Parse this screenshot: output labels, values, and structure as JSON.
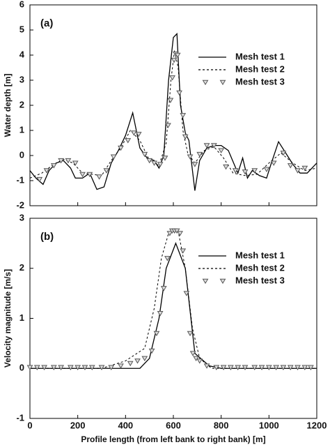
{
  "chart_data": [
    {
      "type": "line",
      "annotation": "(a)",
      "ylabel": "Water depth [m]",
      "xlim": [
        0,
        1200
      ],
      "xticks": [
        0,
        200,
        400,
        600,
        800,
        1000,
        1200
      ],
      "ylim": [
        -2,
        6
      ],
      "yticks": [
        -2,
        -1,
        0,
        1,
        2,
        3,
        4,
        5,
        6
      ],
      "series": [
        {
          "name": "Mesh test 1",
          "style": "solid",
          "color": "#000000",
          "x": [
            0,
            25,
            55,
            80,
            110,
            140,
            170,
            190,
            220,
            250,
            280,
            310,
            340,
            370,
            400,
            430,
            460,
            490,
            520,
            540,
            560,
            580,
            600,
            615,
            630,
            650,
            665,
            690,
            710,
            740,
            770,
            800,
            830,
            870,
            890,
            910,
            930,
            960,
            990,
            1010,
            1040,
            1070,
            1100,
            1130,
            1160,
            1200
          ],
          "values": [
            -0.6,
            -0.9,
            -1.15,
            -0.6,
            -0.3,
            -0.2,
            -0.5,
            -0.9,
            -0.9,
            -0.7,
            -1.35,
            -1.25,
            -0.3,
            0.2,
            0.8,
            1.7,
            0.3,
            -0.1,
            -0.2,
            -0.5,
            0,
            3,
            4.7,
            4.85,
            2,
            0.9,
            0.6,
            -1.4,
            -0.2,
            0.3,
            0.4,
            0.4,
            0.2,
            -0.7,
            -0.1,
            -0.9,
            -0.6,
            -0.8,
            -0.9,
            -0.3,
            0.55,
            0.1,
            -0.35,
            -0.7,
            -0.7,
            -0.3
          ]
        },
        {
          "name": "Mesh test 2",
          "style": "dashed",
          "color": "#000000",
          "x": [
            0,
            50,
            100,
            140,
            180,
            220,
            260,
            300,
            340,
            380,
            420,
            460,
            500,
            540,
            570,
            590,
            605,
            620,
            640,
            660,
            690,
            730,
            770,
            810,
            850,
            900,
            950,
            1000,
            1050,
            1100,
            1150,
            1200
          ],
          "values": [
            -0.9,
            -0.7,
            -0.35,
            -0.15,
            -0.3,
            -0.7,
            -0.75,
            -0.8,
            -0.2,
            0.3,
            1.0,
            0.6,
            -0.2,
            -0.4,
            0.5,
            3,
            4.2,
            3.5,
            1,
            0.1,
            -0.3,
            0.2,
            0.35,
            -0.1,
            -0.7,
            -0.8,
            -0.75,
            -0.3,
            0.1,
            -0.3,
            -0.6,
            -0.5
          ]
        },
        {
          "name": "Mesh test 3",
          "style": "markers",
          "color": "#555555",
          "x": [
            40,
            70,
            100,
            130,
            160,
            190,
            220,
            250,
            290,
            320,
            350,
            380,
            410,
            435,
            455,
            480,
            500,
            520,
            545,
            565,
            578,
            588,
            596,
            603,
            610,
            618,
            625,
            640,
            650,
            670,
            690,
            710,
            740,
            770,
            800,
            820,
            860,
            900,
            940,
            990,
            1020,
            1060,
            1090,
            1120,
            1150
          ],
          "values": [
            -0.95,
            -0.6,
            -0.4,
            -0.2,
            -0.2,
            -0.3,
            -0.75,
            -0.75,
            -0.85,
            -0.6,
            -0.05,
            0.3,
            0.6,
            0.9,
            0.85,
            0.05,
            -0.2,
            -0.3,
            -0.35,
            -0.1,
            1.2,
            2.2,
            3.1,
            3.8,
            4.05,
            4.0,
            2.5,
            1.6,
            0.75,
            -0.05,
            -0.35,
            0.05,
            0.4,
            0.4,
            0.2,
            -0.45,
            -0.6,
            -0.65,
            -0.6,
            -0.55,
            -0.3,
            0.1,
            -0.4,
            -0.6,
            -0.5
          ]
        }
      ]
    },
    {
      "type": "line",
      "annotation": "(b)",
      "ylabel": "Velocity magnitude [m/s]",
      "xlabel": "Profile length (from left bank to right bank) [m]",
      "xlim": [
        0,
        1200
      ],
      "xticks": [
        0,
        200,
        400,
        600,
        800,
        1000,
        1200
      ],
      "ylim": [
        -1,
        3
      ],
      "yticks": [
        -1,
        0,
        1,
        2,
        3
      ],
      "series": [
        {
          "name": "Mesh test 1",
          "style": "solid",
          "color": "#000000",
          "x": [
            0,
            460,
            500,
            540,
            570,
            610,
            650,
            690,
            750,
            800,
            1200
          ],
          "values": [
            0,
            0,
            0.2,
            1,
            2,
            2.5,
            2.0,
            0.3,
            0.05,
            0,
            0
          ]
        },
        {
          "name": "Mesh test 2",
          "style": "dashed",
          "color": "#000000",
          "x": [
            0,
            300,
            400,
            480,
            520,
            550,
            580,
            620,
            650,
            680,
            710,
            760,
            1200
          ],
          "values": [
            0,
            0,
            0.15,
            0.4,
            1.2,
            2.2,
            2.7,
            2.75,
            2,
            0.8,
            0.2,
            0,
            0
          ]
        },
        {
          "name": "Mesh test 3",
          "style": "markers",
          "color": "#555555",
          "x": [
            0,
            30,
            60,
            100,
            130,
            170,
            200,
            230,
            260,
            300,
            340,
            380,
            420,
            450,
            480,
            510,
            530,
            545,
            560,
            575,
            585,
            595,
            605,
            615,
            628,
            640,
            655,
            670,
            682,
            695,
            710,
            740,
            780,
            810,
            840,
            870,
            900,
            940,
            970,
            1000,
            1030,
            1060,
            1090,
            1120,
            1150,
            1175
          ],
          "values": [
            0.02,
            0.02,
            0.02,
            0.02,
            0.02,
            0.02,
            0.02,
            0.02,
            0.02,
            0.02,
            0.02,
            0.05,
            0.1,
            0.15,
            0.2,
            0.35,
            0.7,
            1.1,
            1.6,
            2.2,
            2.7,
            2.75,
            2.75,
            2.75,
            2.7,
            2.35,
            1.5,
            0.7,
            0.3,
            0.2,
            0.15,
            0.05,
            0.02,
            0.02,
            0.02,
            0.02,
            0.02,
            0.02,
            0.02,
            0.02,
            0.02,
            0.02,
            0.02,
            0.02,
            0.02,
            0.02
          ]
        }
      ]
    }
  ]
}
